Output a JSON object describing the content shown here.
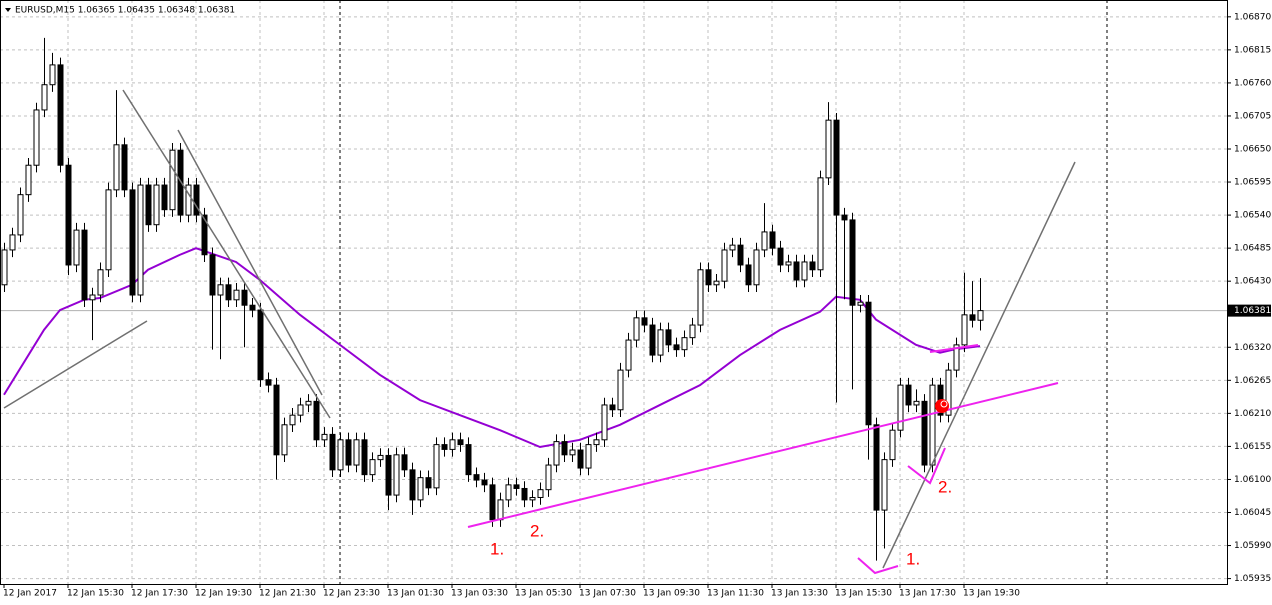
{
  "chart_data": {
    "type": "candlestick",
    "title": "EURUSD,M15  1.06365 1.06435 1.06348 1.06381",
    "ylim": [
      1.05926,
      1.06898
    ],
    "yticks": [
      {
        "value": 1.0687,
        "label": "1.06870"
      },
      {
        "value": 1.06815,
        "label": "1.06815"
      },
      {
        "value": 1.0676,
        "label": "1.06760"
      },
      {
        "value": 1.06705,
        "label": "1.06705"
      },
      {
        "value": 1.0665,
        "label": "1.06650"
      },
      {
        "value": 1.06595,
        "label": "1.06595"
      },
      {
        "value": 1.0654,
        "label": "1.06540"
      },
      {
        "value": 1.06485,
        "label": "1.06485"
      },
      {
        "value": 1.0643,
        "label": "1.06430"
      },
      {
        "value": 1.0632,
        "label": "1.06320"
      },
      {
        "value": 1.06265,
        "label": "1.06265"
      },
      {
        "value": 1.0621,
        "label": "1.06210"
      },
      {
        "value": 1.06155,
        "label": "1.06155"
      },
      {
        "value": 1.061,
        "label": "1.06100"
      },
      {
        "value": 1.06045,
        "label": "1.06045"
      },
      {
        "value": 1.0599,
        "label": "1.05990"
      },
      {
        "value": 1.05935,
        "label": "1.05935"
      }
    ],
    "grid": true,
    "current_price": {
      "value": 1.06381,
      "label": "1.06381"
    },
    "bull_color": "#ffffff",
    "bear_color": "#000000",
    "categories": [
      "12 Jan 2017",
      null,
      null,
      null,
      null,
      null,
      null,
      null,
      "12 Jan 15:30",
      null,
      null,
      null,
      null,
      null,
      null,
      null,
      "12 Jan 17:30",
      null,
      null,
      null,
      null,
      null,
      null,
      null,
      "12 Jan 19:30",
      null,
      null,
      null,
      null,
      null,
      null,
      null,
      "12 Jan 21:30",
      null,
      null,
      null,
      null,
      null,
      null,
      null,
      "12 Jan 23:30",
      null,
      null,
      null,
      null,
      null,
      null,
      null,
      "13 Jan 01:30",
      null,
      null,
      null,
      null,
      null,
      null,
      null,
      "13 Jan 03:30",
      null,
      null,
      null,
      null,
      null,
      null,
      null,
      "13 Jan 05:30",
      null,
      null,
      null,
      null,
      null,
      null,
      null,
      "13 Jan 07:30",
      null,
      null,
      null,
      null,
      null,
      null,
      null,
      "13 Jan 09:30",
      null,
      null,
      null,
      null,
      null,
      null,
      null,
      "13 Jan 11:30",
      null,
      null,
      null,
      null,
      null,
      null,
      null,
      "13 Jan 13:30",
      null,
      null,
      null,
      null,
      null,
      null,
      null,
      "13 Jan 15:30",
      null,
      null,
      null,
      null,
      null,
      null,
      null,
      "13 Jan 17:30",
      null,
      null,
      null,
      null,
      null,
      null,
      null,
      "13 Jan 19:30",
      null,
      null
    ],
    "candles": [
      [
        1.06424,
        1.06494,
        1.06412,
        1.06482
      ],
      [
        1.06482,
        1.06519,
        1.0647,
        1.06507
      ],
      [
        1.06507,
        1.06586,
        1.06495,
        1.06574
      ],
      [
        1.06574,
        1.06635,
        1.06562,
        1.06623
      ],
      [
        1.06623,
        1.06727,
        1.06611,
        1.06715
      ],
      [
        1.06715,
        1.06835,
        1.06703,
        1.06757
      ],
      [
        1.06757,
        1.0681,
        1.06745,
        1.0679
      ],
      [
        1.0679,
        1.06802,
        1.06611,
        1.06623
      ],
      [
        1.06623,
        1.06635,
        1.0644,
        1.06457
      ],
      [
        1.06457,
        1.06527,
        1.06445,
        1.06515
      ],
      [
        1.06515,
        1.06527,
        1.06387,
        1.06399
      ],
      [
        1.06399,
        1.06419,
        1.06332,
        1.06407
      ],
      [
        1.06407,
        1.06461,
        1.06395,
        1.06449
      ],
      [
        1.06449,
        1.06594,
        1.06437,
        1.06582
      ],
      [
        1.06582,
        1.06748,
        1.0657,
        1.06657
      ],
      [
        1.06657,
        1.06669,
        1.0657,
        1.06582
      ],
      [
        1.06582,
        1.06594,
        1.06395,
        1.06407
      ],
      [
        1.06407,
        1.06602,
        1.06395,
        1.0659
      ],
      [
        1.0659,
        1.06602,
        1.06512,
        1.06524
      ],
      [
        1.06524,
        1.06602,
        1.06512,
        1.0659
      ],
      [
        1.0659,
        1.06602,
        1.06537,
        1.06549
      ],
      [
        1.06549,
        1.0666,
        1.06537,
        1.06648
      ],
      [
        1.06648,
        1.0666,
        1.06528,
        1.0654
      ],
      [
        1.0654,
        1.06602,
        1.06528,
        1.0659
      ],
      [
        1.0659,
        1.06602,
        1.06528,
        1.0654
      ],
      [
        1.0654,
        1.06552,
        1.06462,
        1.06474
      ],
      [
        1.06474,
        1.06486,
        1.06316,
        1.06407
      ],
      [
        1.06407,
        1.06436,
        1.063,
        1.06424
      ],
      [
        1.06424,
        1.06436,
        1.06387,
        1.06399
      ],
      [
        1.06399,
        1.06427,
        1.06387,
        1.06415
      ],
      [
        1.06415,
        1.06427,
        1.0632,
        1.0639
      ],
      [
        1.0639,
        1.06402,
        1.0637,
        1.06382
      ],
      [
        1.06382,
        1.06394,
        1.06254,
        1.06266
      ],
      [
        1.06266,
        1.06278,
        1.06245,
        1.06257
      ],
      [
        1.06257,
        1.06269,
        1.061,
        1.06141
      ],
      [
        1.06141,
        1.06203,
        1.06129,
        1.06191
      ],
      [
        1.06191,
        1.06219,
        1.06179,
        1.06207
      ],
      [
        1.06207,
        1.06236,
        1.06195,
        1.06224
      ],
      [
        1.06224,
        1.06242,
        1.06212,
        1.0623
      ],
      [
        1.0623,
        1.06242,
        1.06154,
        1.06166
      ],
      [
        1.06166,
        1.06187,
        1.06154,
        1.06175
      ],
      [
        1.06175,
        1.06187,
        1.06104,
        1.06116
      ],
      [
        1.06116,
        1.06178,
        1.06104,
        1.06166
      ],
      [
        1.06166,
        1.06178,
        1.06112,
        1.06124
      ],
      [
        1.06124,
        1.06178,
        1.06112,
        1.06166
      ],
      [
        1.06166,
        1.06178,
        1.06096,
        1.06108
      ],
      [
        1.06108,
        1.06145,
        1.06096,
        1.06133
      ],
      [
        1.06133,
        1.06152,
        1.06121,
        1.0614
      ],
      [
        1.0614,
        1.06152,
        1.06049,
        1.06074
      ],
      [
        1.06074,
        1.06153,
        1.06062,
        1.06141
      ],
      [
        1.06141,
        1.06153,
        1.06104,
        1.06116
      ],
      [
        1.06116,
        1.06128,
        1.06041,
        1.06066
      ],
      [
        1.06066,
        1.06115,
        1.06054,
        1.06103
      ],
      [
        1.06103,
        1.06115,
        1.06074,
        1.06086
      ],
      [
        1.06086,
        1.0617,
        1.06074,
        1.06158
      ],
      [
        1.06158,
        1.0617,
        1.06138,
        1.0615
      ],
      [
        1.0615,
        1.06178,
        1.06138,
        1.06166
      ],
      [
        1.06166,
        1.06178,
        1.06146,
        1.06158
      ],
      [
        1.06158,
        1.0617,
        1.06096,
        1.06108
      ],
      [
        1.06108,
        1.0612,
        1.06087,
        1.06099
      ],
      [
        1.06099,
        1.06111,
        1.06079,
        1.06091
      ],
      [
        1.06091,
        1.06103,
        1.06021,
        1.06033
      ],
      [
        1.06033,
        1.06078,
        1.06021,
        1.06066
      ],
      [
        1.06066,
        1.06103,
        1.06054,
        1.06091
      ],
      [
        1.06091,
        1.06103,
        1.06073,
        1.06085
      ],
      [
        1.06085,
        1.06097,
        1.06054,
        1.06066
      ],
      [
        1.06066,
        1.06082,
        1.06054,
        1.0607
      ],
      [
        1.0607,
        1.06095,
        1.06058,
        1.06083
      ],
      [
        1.06083,
        1.06136,
        1.06071,
        1.06124
      ],
      [
        1.06124,
        1.06175,
        1.06112,
        1.06163
      ],
      [
        1.06163,
        1.06175,
        1.06129,
        1.06141
      ],
      [
        1.06141,
        1.06161,
        1.06129,
        1.06149
      ],
      [
        1.06149,
        1.06161,
        1.06107,
        1.06119
      ],
      [
        1.06119,
        1.0617,
        1.06107,
        1.06158
      ],
      [
        1.06158,
        1.06178,
        1.06146,
        1.06166
      ],
      [
        1.06166,
        1.06236,
        1.06154,
        1.06224
      ],
      [
        1.06224,
        1.06236,
        1.06204,
        1.06216
      ],
      [
        1.06216,
        1.06294,
        1.06204,
        1.06282
      ],
      [
        1.06282,
        1.06344,
        1.0627,
        1.06332
      ],
      [
        1.06332,
        1.06381,
        1.0632,
        1.06369
      ],
      [
        1.06369,
        1.06381,
        1.06345,
        1.06357
      ],
      [
        1.06357,
        1.06369,
        1.06295,
        1.06307
      ],
      [
        1.06307,
        1.06361,
        1.06295,
        1.06349
      ],
      [
        1.06349,
        1.06361,
        1.06312,
        1.06324
      ],
      [
        1.06324,
        1.06336,
        1.06304,
        1.06316
      ],
      [
        1.06316,
        1.06348,
        1.06304,
        1.06336
      ],
      [
        1.06336,
        1.06369,
        1.06324,
        1.06357
      ],
      [
        1.06357,
        1.06461,
        1.06345,
        1.06449
      ],
      [
        1.06449,
        1.06461,
        1.06412,
        1.06424
      ],
      [
        1.06424,
        1.06442,
        1.06412,
        1.0643
      ],
      [
        1.0643,
        1.06494,
        1.06418,
        1.06482
      ],
      [
        1.06482,
        1.06502,
        1.0647,
        1.0649
      ],
      [
        1.0649,
        1.06502,
        1.06445,
        1.06457
      ],
      [
        1.06457,
        1.06469,
        1.06412,
        1.06424
      ],
      [
        1.06424,
        1.06494,
        1.06412,
        1.06482
      ],
      [
        1.06482,
        1.0656,
        1.0647,
        1.06512
      ],
      [
        1.06512,
        1.06524,
        1.06473,
        1.06485
      ],
      [
        1.06485,
        1.06497,
        1.06445,
        1.06457
      ],
      [
        1.06457,
        1.06474,
        1.06445,
        1.06462
      ],
      [
        1.06462,
        1.06474,
        1.0642,
        1.06432
      ],
      [
        1.06432,
        1.06474,
        1.0642,
        1.06462
      ],
      [
        1.06462,
        1.06474,
        1.06437,
        1.06449
      ],
      [
        1.06449,
        1.06614,
        1.06437,
        1.06602
      ],
      [
        1.06602,
        1.06728,
        1.0659,
        1.06698
      ],
      [
        1.06698,
        1.0671,
        1.06228,
        1.0654
      ],
      [
        1.0654,
        1.06552,
        1.064,
        1.06532
      ],
      [
        1.06532,
        1.06544,
        1.0625,
        1.0639
      ],
      [
        1.0639,
        1.06407,
        1.06378,
        1.06395
      ],
      [
        1.06395,
        1.06407,
        1.06133,
        1.06191
      ],
      [
        1.06191,
        1.06203,
        1.05965,
        1.06049
      ],
      [
        1.06049,
        1.06145,
        1.05985,
        1.06133
      ],
      [
        1.06133,
        1.06194,
        1.06121,
        1.06182
      ],
      [
        1.06182,
        1.06269,
        1.0617,
        1.06257
      ],
      [
        1.06257,
        1.06269,
        1.06212,
        1.06224
      ],
      [
        1.06224,
        1.0625,
        1.06212,
        1.0623
      ],
      [
        1.0623,
        1.06242,
        1.06112,
        1.06124
      ],
      [
        1.06124,
        1.06269,
        1.06112,
        1.06257
      ],
      [
        1.06257,
        1.06269,
        1.06195,
        1.06207
      ],
      [
        1.06207,
        1.06294,
        1.06195,
        1.06282
      ],
      [
        1.06282,
        1.06336,
        1.0627,
        1.06324
      ],
      [
        1.06324,
        1.06444,
        1.06312,
        1.06374
      ],
      [
        1.06374,
        1.0643,
        1.06353,
        1.06365
      ],
      [
        1.06365,
        1.06435,
        1.06348,
        1.06381
      ]
    ],
    "moving_average": {
      "color": "#9400d3",
      "x": [
        0,
        5,
        7,
        10,
        12,
        16,
        18,
        22,
        24,
        29,
        32,
        37,
        42,
        47,
        52,
        57,
        62,
        67,
        72,
        77,
        82,
        87,
        92,
        97,
        102,
        104,
        107,
        109,
        114,
        117,
        119,
        122
      ],
      "values": [
        1.06241,
        1.06349,
        1.06382,
        1.06399,
        1.06402,
        1.06424,
        1.06449,
        1.06474,
        1.06485,
        1.06462,
        1.06432,
        1.06374,
        1.06324,
        1.06274,
        1.06232,
        1.06207,
        1.06182,
        1.06154,
        1.06166,
        1.06191,
        1.06224,
        1.06257,
        1.06307,
        1.06349,
        1.06379,
        1.06404,
        1.06399,
        1.06366,
        1.06324,
        1.06311,
        1.06317,
        1.06322
      ]
    },
    "annotations": [
      "1.",
      "2.",
      "1.",
      "2."
    ]
  }
}
